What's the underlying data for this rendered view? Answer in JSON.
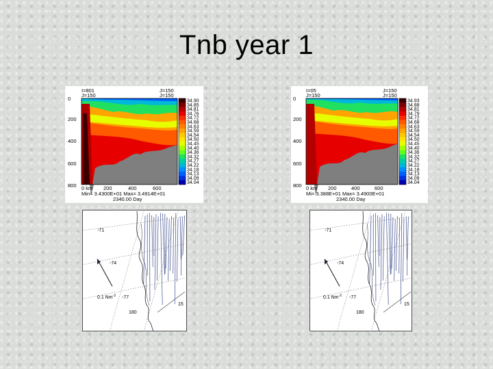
{
  "slide": {
    "title": "Tnb year 1"
  },
  "colorbar_colors": [
    "#3a0000",
    "#7a0000",
    "#b30000",
    "#e60000",
    "#ff2a00",
    "#ff5a00",
    "#ff8000",
    "#ffa400",
    "#ffc800",
    "#ffe600",
    "#e6ff00",
    "#a8ff00",
    "#60ff20",
    "#20e060",
    "#00d0a0",
    "#00b8d8",
    "#0090ff",
    "#0060ff",
    "#0030e0",
    "#0000b0"
  ],
  "left_section": {
    "corner_tl": [
      "I=801",
      "J=150"
    ],
    "corner_tr": [
      "J=150",
      "J=150"
    ],
    "y_ticks": [
      "0",
      "200",
      "400",
      "600",
      "800"
    ],
    "x_ticks": [
      "0 km",
      "200",
      "400",
      "600"
    ],
    "colorbar": [
      "34.90",
      "34.85",
      "34.81",
      "34.76",
      "34.72",
      "34.68",
      "34.63",
      "34.59",
      "34.54",
      "34.50",
      "34.45",
      "34.40",
      "34.36",
      "34.32",
      "34.27",
      "34.22",
      "34.18",
      "34.13",
      "34.09",
      "34.04"
    ],
    "footer_stats": "Min= 3.4300E+01  Max= 3.4914E+01",
    "footer_time": "2340.00 Day"
  },
  "right_section": {
    "corner_tl": [
      "I=05",
      "J=150"
    ],
    "corner_tr": [
      "J=150",
      "J=150"
    ],
    "y_ticks": [
      "0",
      "200",
      "400",
      "600",
      "800"
    ],
    "x_ticks": [
      "0 km",
      "200",
      "400",
      "600"
    ],
    "colorbar": [
      "34.93",
      "34.88",
      "34.81",
      "34.79",
      "34.72",
      "34.68",
      "34.63",
      "34.59",
      "34.54",
      "34.50",
      "34.45",
      "34.40",
      "34.36",
      "34.32",
      "34.27",
      "34.22",
      "34.18",
      "34.13",
      "34.09",
      "34.04"
    ],
    "footer_stats": "Mi= 3.388E+01  Max= 3.4900E+01",
    "footer_time": "2340.00 Day"
  },
  "left_map": {
    "lat_labels": [
      "-71",
      "-74",
      "-77"
    ],
    "scale_label": "0.1 Nm",
    "scale_sup": "-2",
    "lon_label": "180",
    "edge_label": "15"
  },
  "right_map": {
    "lat_labels": [
      "-71",
      "-74",
      "-77"
    ],
    "scale_label": "0.1 Nm",
    "scale_sup": "-2",
    "lon_label": "180",
    "edge_label": "15"
  }
}
